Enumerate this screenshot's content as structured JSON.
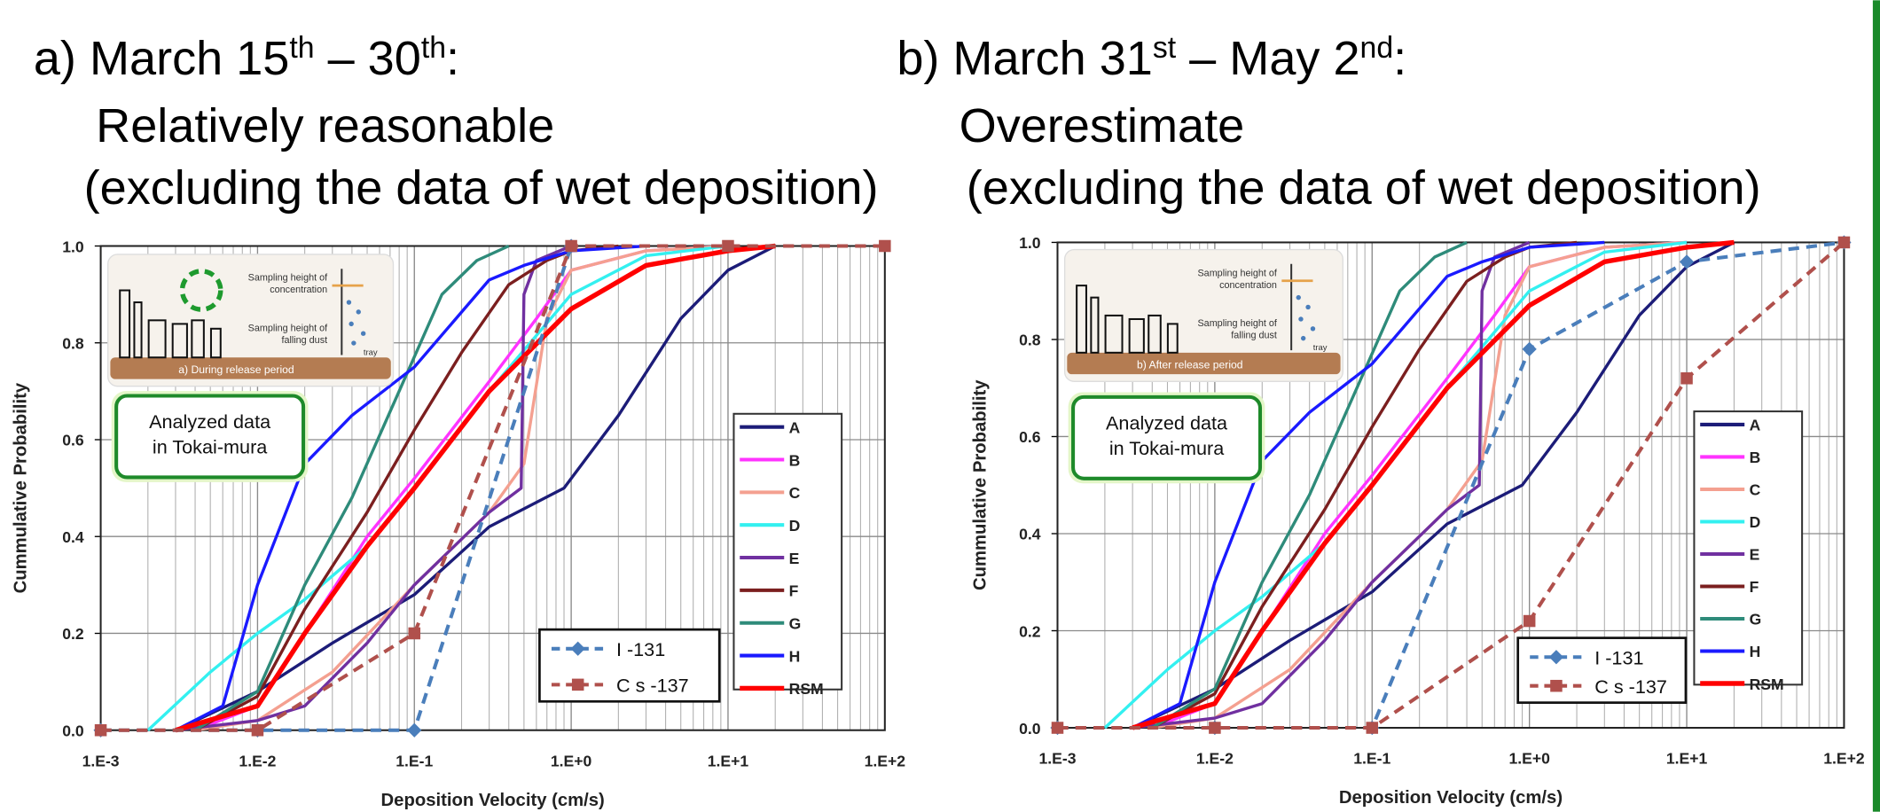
{
  "chart_data": [
    {
      "type": "line",
      "title": [
        [
          {
            "text": "a) March 15"
          },
          {
            "text": "th",
            "sup": true
          },
          {
            "text": " – 30"
          },
          {
            "text": "th",
            "sup": true
          },
          {
            "text": ":"
          }
        ],
        "Relatively reasonable",
        "(excluding the data of wet deposition)"
      ],
      "x_scale": "log",
      "xlim": [
        0.001,
        100
      ],
      "ylim": [
        0,
        1
      ],
      "xticks": [
        {
          "value": 0.001,
          "label": "1.E-3"
        },
        {
          "value": 0.01,
          "label": "1.E-2"
        },
        {
          "value": 0.1,
          "label": "1.E-1"
        },
        {
          "value": 1,
          "label": "1.E+0"
        },
        {
          "value": 10,
          "label": "1.E+1"
        },
        {
          "value": 100,
          "label": "1.E+2"
        }
      ],
      "yticks": [
        {
          "value": 0,
          "label": "0.0"
        },
        0.2,
        0.4,
        0.6,
        0.8,
        {
          "value": 1,
          "label": "1.0"
        }
      ],
      "grid": true,
      "legend": "right",
      "xlabel": "Deposition Velocity (cm/s)",
      "ylabel": "Cummulative Probability",
      "note": [
        "Analyzed data",
        "in Tokai-mura"
      ],
      "inset": {
        "concentration": [
          "Sampling height of",
          "concentration"
        ],
        "dust": [
          "Sampling height of",
          "falling dust"
        ],
        "tray": "tray",
        "caption": "a)  During release period"
      },
      "series": [
        {
          "name": "A",
          "color": "#1c1c78",
          "x": [
            0.003,
            0.01,
            0.03,
            0.1,
            0.3,
            0.9,
            2,
            5,
            10,
            20
          ],
          "values": [
            0,
            0.08,
            0.18,
            0.28,
            0.42,
            0.5,
            0.65,
            0.85,
            0.95,
            1
          ]
        },
        {
          "name": "B",
          "color": "#ff33ff",
          "x": [
            0.004,
            0.01,
            0.02,
            0.05,
            0.1,
            0.3,
            0.6,
            1,
            3,
            10
          ],
          "values": [
            0,
            0.05,
            0.2,
            0.4,
            0.52,
            0.72,
            0.85,
            0.95,
            0.99,
            1
          ]
        },
        {
          "name": "C",
          "color": "#f4a090",
          "x": [
            0.004,
            0.01,
            0.03,
            0.1,
            0.3,
            0.5,
            0.7,
            1,
            3,
            10
          ],
          "values": [
            0,
            0.02,
            0.12,
            0.3,
            0.45,
            0.55,
            0.85,
            0.95,
            0.99,
            1
          ]
        },
        {
          "name": "D",
          "color": "#33f0f0",
          "x": [
            0.002,
            0.005,
            0.01,
            0.02,
            0.05,
            0.1,
            0.3,
            1,
            3,
            10
          ],
          "values": [
            0,
            0.12,
            0.2,
            0.27,
            0.38,
            0.5,
            0.7,
            0.9,
            0.98,
            1
          ]
        },
        {
          "name": "E",
          "color": "#7030a0",
          "x": [
            0.003,
            0.01,
            0.02,
            0.05,
            0.1,
            0.3,
            0.48,
            0.5,
            0.6,
            1
          ],
          "values": [
            0,
            0.02,
            0.05,
            0.18,
            0.3,
            0.45,
            0.5,
            0.9,
            0.97,
            1
          ]
        },
        {
          "name": "F",
          "color": "#7b1f1f",
          "x": [
            0.004,
            0.01,
            0.02,
            0.05,
            0.1,
            0.2,
            0.4,
            0.7,
            1,
            2
          ],
          "values": [
            0,
            0.07,
            0.25,
            0.45,
            0.62,
            0.78,
            0.92,
            0.97,
            0.99,
            1
          ]
        },
        {
          "name": "G",
          "color": "#2e8b7a",
          "x": [
            0.004,
            0.01,
            0.02,
            0.04,
            0.08,
            0.15,
            0.25,
            0.4
          ],
          "values": [
            0,
            0.08,
            0.3,
            0.48,
            0.7,
            0.9,
            0.97,
            1
          ]
        },
        {
          "name": "H",
          "color": "#1a1aff",
          "x": [
            0.003,
            0.006,
            0.01,
            0.02,
            0.04,
            0.1,
            0.3,
            0.5,
            1,
            3
          ],
          "values": [
            0,
            0.05,
            0.3,
            0.55,
            0.65,
            0.75,
            0.93,
            0.96,
            0.99,
            1
          ]
        },
        {
          "name": "RSM",
          "color": "#ff0000",
          "width": 4,
          "x": [
            0.003,
            0.01,
            0.02,
            0.05,
            0.1,
            0.3,
            1,
            3,
            10,
            20
          ],
          "values": [
            0,
            0.05,
            0.2,
            0.38,
            0.5,
            0.7,
            0.87,
            0.96,
            0.99,
            1
          ]
        },
        {
          "name": "I -131",
          "color": "#4a7ebb",
          "marker": "diamond",
          "dashed": true,
          "x": [
            0.001,
            0.01,
            0.1,
            1
          ],
          "values": [
            0,
            0,
            0,
            1
          ]
        },
        {
          "name": "C s -137",
          "color": "#b0504c",
          "marker": "square",
          "dashed": true,
          "x": [
            0.001,
            0.01,
            0.1,
            1,
            10,
            100
          ],
          "values": [
            0,
            0,
            0.2,
            1,
            1,
            1
          ]
        }
      ]
    },
    {
      "type": "line",
      "title": [
        [
          {
            "text": "b) March 31"
          },
          {
            "text": "st",
            "sup": true
          },
          {
            "text": " – May 2"
          },
          {
            "text": "nd",
            "sup": true
          },
          {
            "text": ":"
          }
        ],
        "Overestimate",
        "(excluding the data of wet deposition)"
      ],
      "x_scale": "log",
      "xlim": [
        0.001,
        100
      ],
      "ylim": [
        0,
        1
      ],
      "xticks": [
        {
          "value": 0.001,
          "label": "1.E-3"
        },
        {
          "value": 0.01,
          "label": "1.E-2"
        },
        {
          "value": 0.1,
          "label": "1.E-1"
        },
        {
          "value": 1,
          "label": "1.E+0"
        },
        {
          "value": 10,
          "label": "1.E+1"
        },
        {
          "value": 100,
          "label": "1.E+2"
        }
      ],
      "yticks": [
        {
          "value": 0,
          "label": "0.0"
        },
        0.2,
        0.4,
        0.6,
        0.8,
        {
          "value": 1,
          "label": "1.0"
        }
      ],
      "grid": true,
      "legend": "right",
      "xlabel": "Deposition Velocity (cm/s)",
      "ylabel": "Cummulative Probability",
      "note": [
        "Analyzed data",
        "in Tokai-mura"
      ],
      "inset": {
        "concentration": [
          "Sampling height of",
          "concentration"
        ],
        "dust": [
          "Sampling height of",
          "falling dust"
        ],
        "tray": "tray",
        "caption": "b)  After release period"
      },
      "series": [
        {
          "name": "A",
          "color": "#1c1c78",
          "x": [
            0.003,
            0.01,
            0.03,
            0.1,
            0.3,
            0.9,
            2,
            5,
            10,
            20
          ],
          "values": [
            0,
            0.08,
            0.18,
            0.28,
            0.42,
            0.5,
            0.65,
            0.85,
            0.95,
            1
          ]
        },
        {
          "name": "B",
          "color": "#ff33ff",
          "x": [
            0.004,
            0.01,
            0.02,
            0.05,
            0.1,
            0.3,
            0.6,
            1,
            3,
            10
          ],
          "values": [
            0,
            0.05,
            0.2,
            0.4,
            0.52,
            0.72,
            0.85,
            0.95,
            0.99,
            1
          ]
        },
        {
          "name": "C",
          "color": "#f4a090",
          "x": [
            0.004,
            0.01,
            0.03,
            0.1,
            0.3,
            0.5,
            0.7,
            1,
            3,
            10
          ],
          "values": [
            0,
            0.02,
            0.12,
            0.3,
            0.45,
            0.55,
            0.85,
            0.95,
            0.99,
            1
          ]
        },
        {
          "name": "D",
          "color": "#33f0f0",
          "x": [
            0.002,
            0.005,
            0.01,
            0.02,
            0.05,
            0.1,
            0.3,
            1,
            3,
            10
          ],
          "values": [
            0,
            0.12,
            0.2,
            0.27,
            0.38,
            0.5,
            0.7,
            0.9,
            0.98,
            1
          ]
        },
        {
          "name": "E",
          "color": "#7030a0",
          "x": [
            0.003,
            0.01,
            0.02,
            0.05,
            0.1,
            0.3,
            0.48,
            0.5,
            0.6,
            1
          ],
          "values": [
            0,
            0.02,
            0.05,
            0.18,
            0.3,
            0.45,
            0.5,
            0.9,
            0.97,
            1
          ]
        },
        {
          "name": "F",
          "color": "#7b1f1f",
          "x": [
            0.004,
            0.01,
            0.02,
            0.05,
            0.1,
            0.2,
            0.4,
            0.7,
            1,
            2
          ],
          "values": [
            0,
            0.07,
            0.25,
            0.45,
            0.62,
            0.78,
            0.92,
            0.97,
            0.99,
            1
          ]
        },
        {
          "name": "G",
          "color": "#2e8b7a",
          "x": [
            0.004,
            0.01,
            0.02,
            0.04,
            0.08,
            0.15,
            0.25,
            0.4
          ],
          "values": [
            0,
            0.08,
            0.3,
            0.48,
            0.7,
            0.9,
            0.97,
            1
          ]
        },
        {
          "name": "H",
          "color": "#1a1aff",
          "x": [
            0.003,
            0.006,
            0.01,
            0.02,
            0.04,
            0.1,
            0.3,
            0.5,
            1,
            3
          ],
          "values": [
            0,
            0.05,
            0.3,
            0.55,
            0.65,
            0.75,
            0.93,
            0.96,
            0.99,
            1
          ]
        },
        {
          "name": "RSM",
          "color": "#ff0000",
          "width": 4,
          "x": [
            0.003,
            0.01,
            0.02,
            0.05,
            0.1,
            0.3,
            1,
            3,
            10,
            20
          ],
          "values": [
            0,
            0.05,
            0.2,
            0.38,
            0.5,
            0.7,
            0.87,
            0.96,
            0.99,
            1
          ]
        },
        {
          "name": "I -131",
          "color": "#4a7ebb",
          "marker": "diamond",
          "dashed": true,
          "x": [
            0.001,
            0.01,
            0.1,
            1,
            10,
            100
          ],
          "values": [
            0,
            0,
            0,
            0.78,
            0.96,
            1
          ]
        },
        {
          "name": "C s -137",
          "color": "#b0504c",
          "marker": "square",
          "dashed": true,
          "x": [
            0.001,
            0.01,
            0.1,
            1,
            10,
            100
          ],
          "values": [
            0,
            0,
            0,
            0.22,
            0.72,
            1
          ]
        }
      ]
    }
  ]
}
